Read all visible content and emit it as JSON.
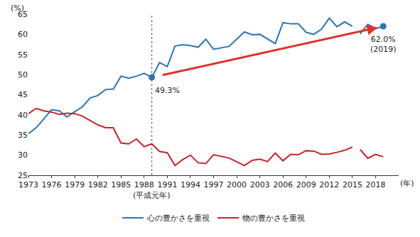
{
  "chart_data": {
    "type": "line",
    "y_label": "(%)",
    "x_label": "(年)",
    "x": [
      1973,
      1974,
      1975,
      1976,
      1977,
      1978,
      1979,
      1980,
      1981,
      1982,
      1983,
      1984,
      1985,
      1986,
      1987,
      1988,
      1989,
      1990,
      1991,
      1992,
      1993,
      1994,
      1995,
      1996,
      1997,
      1999,
      2001,
      2002,
      2003,
      2004,
      2005,
      2006,
      2007,
      2008,
      2009,
      2010,
      2011,
      2012,
      2013,
      2014,
      2015,
      2016,
      2017,
      2018,
      2019
    ],
    "series": [
      {
        "name": "心の豊かさを重視",
        "color": "#2e75b6",
        "values": [
          35.3,
          36.8,
          39.0,
          41.3,
          41.0,
          39.5,
          40.8,
          42.0,
          44.2,
          44.8,
          46.3,
          46.4,
          49.6,
          49.1,
          49.6,
          50.3,
          49.3,
          53.0,
          52.0,
          57.1,
          57.4,
          57.2,
          56.8,
          58.8,
          56.3,
          57.0,
          60.6,
          59.9,
          60.0,
          58.8,
          57.7,
          62.9,
          62.6,
          62.6,
          60.5,
          60.0,
          61.3,
          64.0,
          61.9,
          63.1,
          62.0,
          null,
          null,
          null,
          null
        ]
      },
      {
        "name": "心の豊かさを重視",
        "color": "#2e75b6",
        "values": [
          null,
          null,
          null,
          null,
          null,
          null,
          null,
          null,
          null,
          null,
          null,
          null,
          null,
          null,
          null,
          null,
          null,
          null,
          null,
          null,
          null,
          null,
          null,
          null,
          null,
          null,
          null,
          null,
          null,
          null,
          null,
          null,
          null,
          null,
          null,
          null,
          null,
          null,
          null,
          null,
          null,
          60.1,
          62.5,
          61.4,
          62.0
        ]
      },
      {
        "name": "物の豊かさを重視",
        "color": "#c8232c",
        "values": [
          40.3,
          41.6,
          41.0,
          40.7,
          40.1,
          40.4,
          40.3,
          39.7,
          38.6,
          37.5,
          36.8,
          36.8,
          33.0,
          32.8,
          34.0,
          32.1,
          32.8,
          30.9,
          30.6,
          27.4,
          28.9,
          30.0,
          28.1,
          27.9,
          30.1,
          29.3,
          27.4,
          28.7,
          29.0,
          28.4,
          30.5,
          28.6,
          30.2,
          30.1,
          31.1,
          31.0,
          30.2,
          30.3,
          30.7,
          31.2,
          32.0,
          null,
          null,
          null,
          null
        ]
      },
      {
        "name": "物の豊かさを重視",
        "color": "#c8232c",
        "values": [
          null,
          null,
          null,
          null,
          null,
          null,
          null,
          null,
          null,
          null,
          null,
          null,
          null,
          null,
          null,
          null,
          null,
          null,
          null,
          null,
          null,
          null,
          null,
          null,
          null,
          null,
          null,
          null,
          null,
          null,
          null,
          null,
          null,
          null,
          null,
          null,
          null,
          null,
          null,
          null,
          null,
          31.4,
          29.2,
          30.2,
          29.6
        ]
      }
    ],
    "annotations": [
      {
        "x": 1989,
        "y": 49.3,
        "text": "49.3%"
      },
      {
        "x": 2019,
        "y": 62.0,
        "text": "62.0%\n(2019)"
      }
    ],
    "reference_line": {
      "x": 1989,
      "label": "(平成元年)"
    },
    "xlim": [
      1973,
      2021
    ],
    "xticks": [
      1973,
      1976,
      1979,
      1982,
      1985,
      1988,
      1991,
      1994,
      1997,
      2000,
      2003,
      2006,
      2009,
      2012,
      2015,
      2018
    ],
    "ylim": [
      25,
      65
    ],
    "yticks": [
      25,
      30,
      35,
      40,
      45,
      50,
      55,
      60,
      65
    ],
    "grid": false,
    "legend": "bottom"
  }
}
